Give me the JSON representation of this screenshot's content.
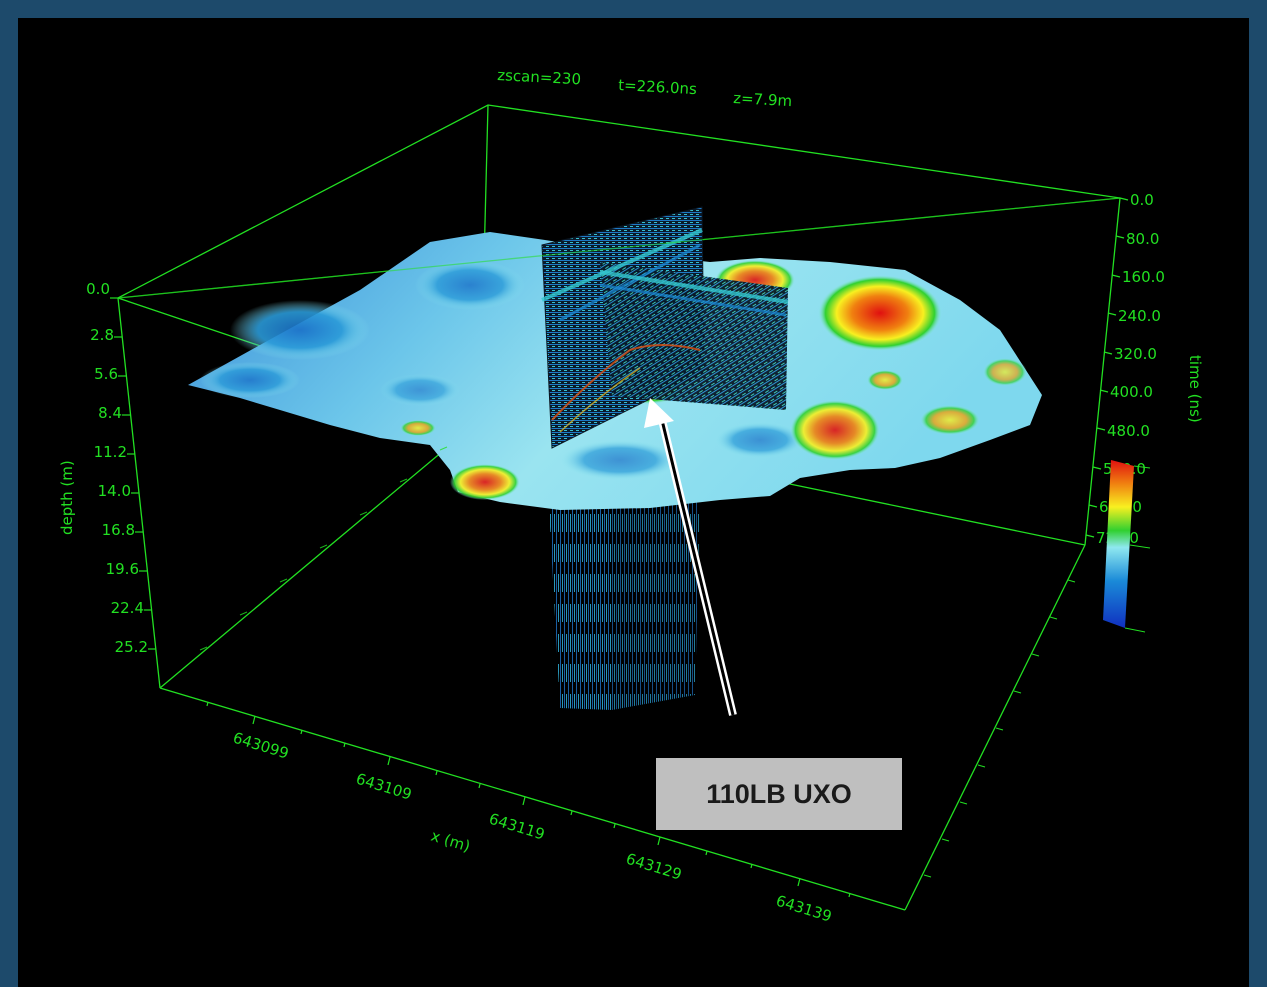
{
  "header": {
    "zscan": "zscan=230",
    "time": "t=226.0ns",
    "depth": "z=7.9m"
  },
  "axes": {
    "depth_label": "depth (m)",
    "depth_ticks": [
      "0.0",
      "2.8",
      "5.6",
      "8.4",
      "11.2",
      "14.0",
      "16.8",
      "19.6",
      "22.4",
      "25.2"
    ],
    "time_label": "time (ns)",
    "time_ticks": [
      "0.0",
      "80.0",
      "160.0",
      "240.0",
      "320.0",
      "400.0",
      "480.0",
      "560.0",
      "640.0",
      "720.0"
    ],
    "x_label": "x (m)",
    "x_ticks": [
      "643099",
      "643109",
      "643119",
      "643129",
      "643139"
    ]
  },
  "colorbar": {
    "stops": [
      "#1030c0",
      "#1a8ad8",
      "#8fe8f0",
      "#30d030",
      "#f8f020",
      "#f08010",
      "#e01010"
    ]
  },
  "callout": {
    "label": "110LB UXO"
  },
  "colors": {
    "axis_green": "#22e022",
    "background": "#000000",
    "border": "#1d4a6b"
  }
}
